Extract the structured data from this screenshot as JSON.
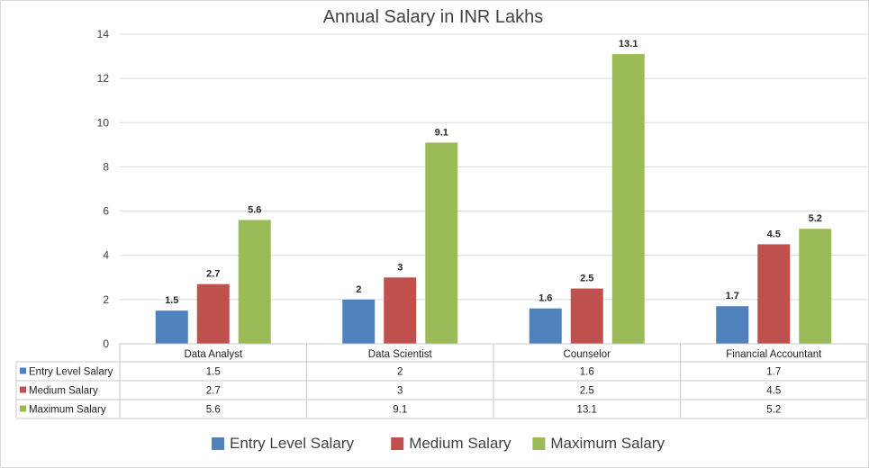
{
  "chart_data": {
    "type": "bar",
    "title": "Annual Salary in INR Lakhs",
    "categories": [
      "Data Analyst",
      "Data Scientist",
      "Counselor",
      "Financial Accountant"
    ],
    "series": [
      {
        "name": "Entry Level Salary",
        "color": "#4f81bd",
        "values": [
          1.5,
          2,
          1.6,
          1.7
        ],
        "labels": [
          "1.5",
          "2",
          "1.6",
          "1.7"
        ]
      },
      {
        "name": "Medium Salary",
        "color": "#c0504d",
        "values": [
          2.7,
          3,
          2.5,
          4.5
        ],
        "labels": [
          "2.7",
          "3",
          "2.5",
          "4.5"
        ]
      },
      {
        "name": "Maximum Salary",
        "color": "#9bbb59",
        "values": [
          5.6,
          9.1,
          13.1,
          5.2
        ],
        "labels": [
          "5.6",
          "9.1",
          "13.1",
          "5.2"
        ]
      }
    ],
    "ylim": [
      0,
      14
    ],
    "yticks": [
      0,
      2,
      4,
      6,
      8,
      10,
      12,
      14
    ],
    "xlabel": "",
    "ylabel": "",
    "grid": true,
    "legend": "bottom",
    "data_table": true
  }
}
